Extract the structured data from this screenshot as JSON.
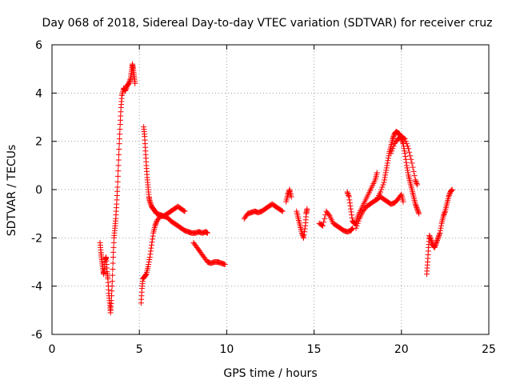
{
  "chart_data": {
    "type": "scatter",
    "title": "Day 068 of 2018, Sidereal Day-to-day VTEC variation (SDTVAR) for receiver cruz",
    "xlabel": "GPS time / hours",
    "ylabel": "SDTVAR / TECUs",
    "xlim": [
      0,
      25
    ],
    "ylim": [
      -6,
      6
    ],
    "xticks": [
      0,
      5,
      10,
      15,
      20,
      25
    ],
    "yticks": [
      -6,
      -4,
      -2,
      0,
      2,
      4,
      6
    ],
    "xtick_labels": [
      "0",
      "5",
      "10",
      "15",
      "20",
      "25"
    ],
    "ytick_labels": [
      "-6",
      "-4",
      "-2",
      "0",
      "2",
      "4",
      "6"
    ],
    "grid": true,
    "marker": "+",
    "series": [
      {
        "name": "SDTVAR",
        "color": "#ff0000",
        "segments": [
          [
            [
              2.75,
              -2.2
            ],
            [
              2.8,
              -2.6
            ],
            [
              2.85,
              -2.9
            ],
            [
              2.9,
              -3.2
            ],
            [
              2.95,
              -3.5
            ],
            [
              3.0,
              -3.3
            ],
            [
              3.05,
              -2.9
            ],
            [
              3.1,
              -2.8
            ],
            [
              3.15,
              -3.4
            ],
            [
              3.2,
              -3.7
            ],
            [
              3.25,
              -4.3
            ],
            [
              3.3,
              -4.7
            ],
            [
              3.35,
              -5.1
            ],
            [
              3.4,
              -4.6
            ],
            [
              3.45,
              -3.8
            ],
            [
              3.5,
              -2.8
            ],
            [
              3.55,
              -2.0
            ],
            [
              3.6,
              -1.6
            ],
            [
              3.65,
              -1.2
            ],
            [
              3.7,
              -0.6
            ],
            [
              3.75,
              0.1
            ],
            [
              3.8,
              1.0
            ],
            [
              3.85,
              1.9
            ],
            [
              3.9,
              2.7
            ],
            [
              3.95,
              3.4
            ],
            [
              4.0,
              3.9
            ],
            [
              4.1,
              4.2
            ],
            [
              4.2,
              4.1
            ],
            [
              4.3,
              4.3
            ],
            [
              4.4,
              4.4
            ],
            [
              4.5,
              4.6
            ],
            [
              4.55,
              4.9
            ],
            [
              4.6,
              5.2
            ],
            [
              4.65,
              5.0
            ],
            [
              4.7,
              4.7
            ],
            [
              4.75,
              4.4
            ]
          ],
          [
            [
              5.1,
              -4.7
            ],
            [
              5.15,
              -4.1
            ],
            [
              5.2,
              -3.7
            ],
            [
              5.3,
              -3.6
            ],
            [
              5.4,
              -3.5
            ],
            [
              5.5,
              -3.2
            ],
            [
              5.6,
              -2.8
            ],
            [
              5.7,
              -2.3
            ],
            [
              5.8,
              -1.8
            ],
            [
              5.9,
              -1.5
            ],
            [
              6.0,
              -1.3
            ],
            [
              6.2,
              -1.1
            ],
            [
              6.4,
              -1.1
            ],
            [
              6.6,
              -1.0
            ],
            [
              6.8,
              -0.9
            ],
            [
              7.0,
              -0.8
            ],
            [
              7.2,
              -0.7
            ],
            [
              7.4,
              -0.8
            ],
            [
              7.6,
              -0.9
            ]
          ],
          [
            [
              5.25,
              2.6
            ],
            [
              5.3,
              2.2
            ],
            [
              5.35,
              1.6
            ],
            [
              5.4,
              1.0
            ],
            [
              5.45,
              0.5
            ],
            [
              5.5,
              0.1
            ],
            [
              5.55,
              -0.3
            ],
            [
              5.6,
              -0.5
            ],
            [
              5.7,
              -0.7
            ],
            [
              5.8,
              -0.8
            ],
            [
              5.9,
              -0.9
            ],
            [
              6.0,
              -1.0
            ],
            [
              6.2,
              -1.05
            ],
            [
              6.4,
              -1.1
            ],
            [
              6.6,
              -1.15
            ],
            [
              6.8,
              -1.3
            ],
            [
              7.0,
              -1.4
            ],
            [
              7.2,
              -1.5
            ],
            [
              7.4,
              -1.6
            ],
            [
              7.6,
              -1.7
            ],
            [
              7.8,
              -1.75
            ],
            [
              8.0,
              -1.8
            ],
            [
              8.2,
              -1.8
            ],
            [
              8.4,
              -1.75
            ],
            [
              8.6,
              -1.8
            ],
            [
              8.8,
              -1.75
            ],
            [
              8.9,
              -1.8
            ]
          ],
          [
            [
              8.1,
              -2.2
            ],
            [
              8.3,
              -2.4
            ],
            [
              8.5,
              -2.6
            ],
            [
              8.7,
              -2.8
            ],
            [
              8.9,
              -3.0
            ],
            [
              9.1,
              -3.05
            ],
            [
              9.3,
              -3.0
            ],
            [
              9.5,
              -3.0
            ],
            [
              9.7,
              -3.05
            ],
            [
              9.9,
              -3.1
            ]
          ],
          [
            [
              11.0,
              -1.2
            ],
            [
              11.2,
              -1.0
            ],
            [
              11.4,
              -0.95
            ],
            [
              11.6,
              -0.9
            ],
            [
              11.8,
              -0.95
            ],
            [
              12.0,
              -0.9
            ],
            [
              12.2,
              -0.8
            ],
            [
              12.4,
              -0.7
            ],
            [
              12.6,
              -0.6
            ],
            [
              12.8,
              -0.7
            ],
            [
              13.0,
              -0.8
            ],
            [
              13.2,
              -0.9
            ]
          ],
          [
            [
              13.4,
              -0.5
            ],
            [
              13.5,
              -0.2
            ],
            [
              13.6,
              0.0
            ],
            [
              13.7,
              -0.3
            ]
          ],
          [
            [
              14.0,
              -0.9
            ],
            [
              14.1,
              -1.2
            ],
            [
              14.2,
              -1.5
            ],
            [
              14.3,
              -1.8
            ],
            [
              14.4,
              -2.0
            ],
            [
              14.5,
              -1.5
            ],
            [
              14.55,
              -1.0
            ],
            [
              14.6,
              -0.8
            ]
          ],
          [
            [
              15.3,
              -1.4
            ],
            [
              15.5,
              -1.5
            ],
            [
              15.7,
              -0.9
            ],
            [
              15.9,
              -1.1
            ],
            [
              16.1,
              -1.4
            ],
            [
              16.3,
              -1.5
            ],
            [
              16.5,
              -1.6
            ],
            [
              16.7,
              -1.7
            ],
            [
              16.9,
              -1.75
            ],
            [
              17.1,
              -1.7
            ],
            [
              17.2,
              -1.6
            ]
          ],
          [
            [
              16.9,
              -0.1
            ],
            [
              17.0,
              -0.3
            ],
            [
              17.1,
              -0.8
            ],
            [
              17.2,
              -1.3
            ],
            [
              17.3,
              -1.4
            ],
            [
              17.4,
              -1.4
            ],
            [
              17.5,
              -1.1
            ],
            [
              17.7,
              -0.8
            ],
            [
              17.9,
              -0.5
            ],
            [
              18.1,
              -0.2
            ],
            [
              18.3,
              0.1
            ],
            [
              18.5,
              0.4
            ],
            [
              18.6,
              0.7
            ]
          ],
          [
            [
              17.4,
              -1.6
            ],
            [
              17.6,
              -1.2
            ],
            [
              17.8,
              -0.9
            ],
            [
              18.0,
              -0.7
            ],
            [
              18.2,
              -0.6
            ],
            [
              18.4,
              -0.5
            ],
            [
              18.6,
              -0.4
            ],
            [
              18.8,
              -0.3
            ],
            [
              19.0,
              -0.4
            ],
            [
              19.2,
              -0.5
            ],
            [
              19.4,
              -0.6
            ],
            [
              19.6,
              -0.55
            ],
            [
              19.8,
              -0.4
            ],
            [
              20.0,
              -0.2
            ],
            [
              20.1,
              -0.5
            ]
          ],
          [
            [
              18.6,
              -0.4
            ],
            [
              18.8,
              -0.1
            ],
            [
              19.0,
              0.3
            ],
            [
              19.1,
              0.7
            ],
            [
              19.2,
              1.1
            ],
            [
              19.3,
              1.5
            ],
            [
              19.4,
              1.8
            ],
            [
              19.5,
              2.1
            ],
            [
              19.6,
              2.3
            ],
            [
              19.7,
              2.4
            ],
            [
              19.8,
              2.35
            ],
            [
              19.9,
              2.3
            ],
            [
              20.0,
              2.1
            ],
            [
              20.1,
              1.9
            ],
            [
              20.2,
              1.5
            ],
            [
              20.3,
              1.0
            ],
            [
              20.4,
              0.6
            ],
            [
              20.5,
              0.3
            ],
            [
              20.6,
              0.0
            ],
            [
              20.7,
              -0.3
            ],
            [
              20.8,
              -0.6
            ],
            [
              20.9,
              -0.8
            ],
            [
              21.0,
              -1.0
            ]
          ],
          [
            [
              19.4,
              1.5
            ],
            [
              19.6,
              1.9
            ],
            [
              19.8,
              2.1
            ],
            [
              20.0,
              2.2
            ],
            [
              20.2,
              2.1
            ],
            [
              20.4,
              1.7
            ],
            [
              20.6,
              1.1
            ],
            [
              20.8,
              0.4
            ],
            [
              20.9,
              0.2
            ]
          ],
          [
            [
              21.45,
              -3.5
            ],
            [
              21.5,
              -3.0
            ],
            [
              21.55,
              -2.4
            ],
            [
              21.6,
              -1.9
            ],
            [
              21.7,
              -2.1
            ],
            [
              21.8,
              -2.3
            ],
            [
              21.9,
              -2.4
            ],
            [
              22.0,
              -2.2
            ],
            [
              22.1,
              -2.0
            ],
            [
              22.2,
              -1.8
            ],
            [
              22.3,
              -1.4
            ],
            [
              22.4,
              -1.1
            ],
            [
              22.5,
              -0.9
            ],
            [
              22.6,
              -0.6
            ],
            [
              22.7,
              -0.3
            ],
            [
              22.8,
              -0.1
            ],
            [
              22.9,
              0.0
            ]
          ]
        ]
      }
    ]
  }
}
